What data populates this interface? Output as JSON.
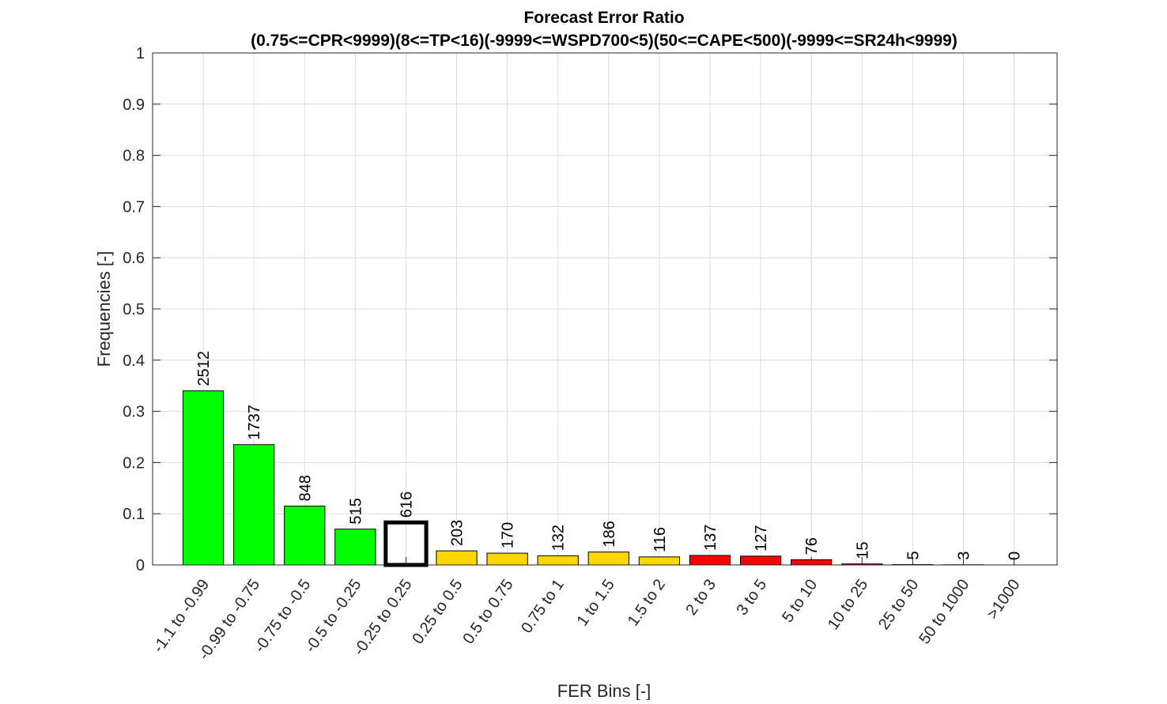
{
  "chart_data": {
    "type": "bar",
    "title": "Forecast Error Ratio",
    "subtitle": "(0.75<=CPR<9999)(8<=TP<16)(-9999<=WSPD700<5)(50<=CAPE<500)(-9999<=SR24h<9999)",
    "xlabel": "FER Bins [-]",
    "ylabel": "Frequencies [-]",
    "ylim": [
      0,
      1
    ],
    "yticks": [
      "0",
      "0.1",
      "0.2",
      "0.3",
      "0.4",
      "0.5",
      "0.6",
      "0.7",
      "0.8",
      "0.9",
      "1"
    ],
    "grid": true,
    "categories": [
      "-1.1 to -0.99",
      "-0.99 to -0.75",
      "-0.75 to -0.5",
      "-0.5 to -0.25",
      "-0.25 to 0.25",
      "0.25 to 0.5",
      "0.5 to 0.75",
      "0.75 to 1",
      "1 to 1.5",
      "1.5 to 2",
      "2 to 3",
      "3 to 5",
      "5 to 10",
      "10 to 25",
      "25 to 50",
      "50 to 1000",
      ">1000"
    ],
    "counts": [
      "2512",
      "1737",
      "848",
      "515",
      "616",
      "203",
      "170",
      "132",
      "186",
      "116",
      "137",
      "127",
      "76",
      "15",
      "5",
      "3",
      "0"
    ],
    "values": [
      0.34,
      0.235,
      0.115,
      0.07,
      0.083,
      0.0275,
      0.023,
      0.0179,
      0.0252,
      0.0157,
      0.0186,
      0.0172,
      0.0103,
      0.002,
      0.0007,
      0.0004,
      0.0
    ],
    "bar_colors": [
      "#00ff00",
      "#00ff00",
      "#00ff00",
      "#00ff00",
      "none",
      "#ffd700",
      "#ffd700",
      "#ffd700",
      "#ffd700",
      "#ffd700",
      "#ff0000",
      "#ff0000",
      "#ff0000",
      "#ff0000",
      "#ff0000",
      "#ff0000",
      "#ff0000"
    ],
    "highlight_index": 4
  }
}
